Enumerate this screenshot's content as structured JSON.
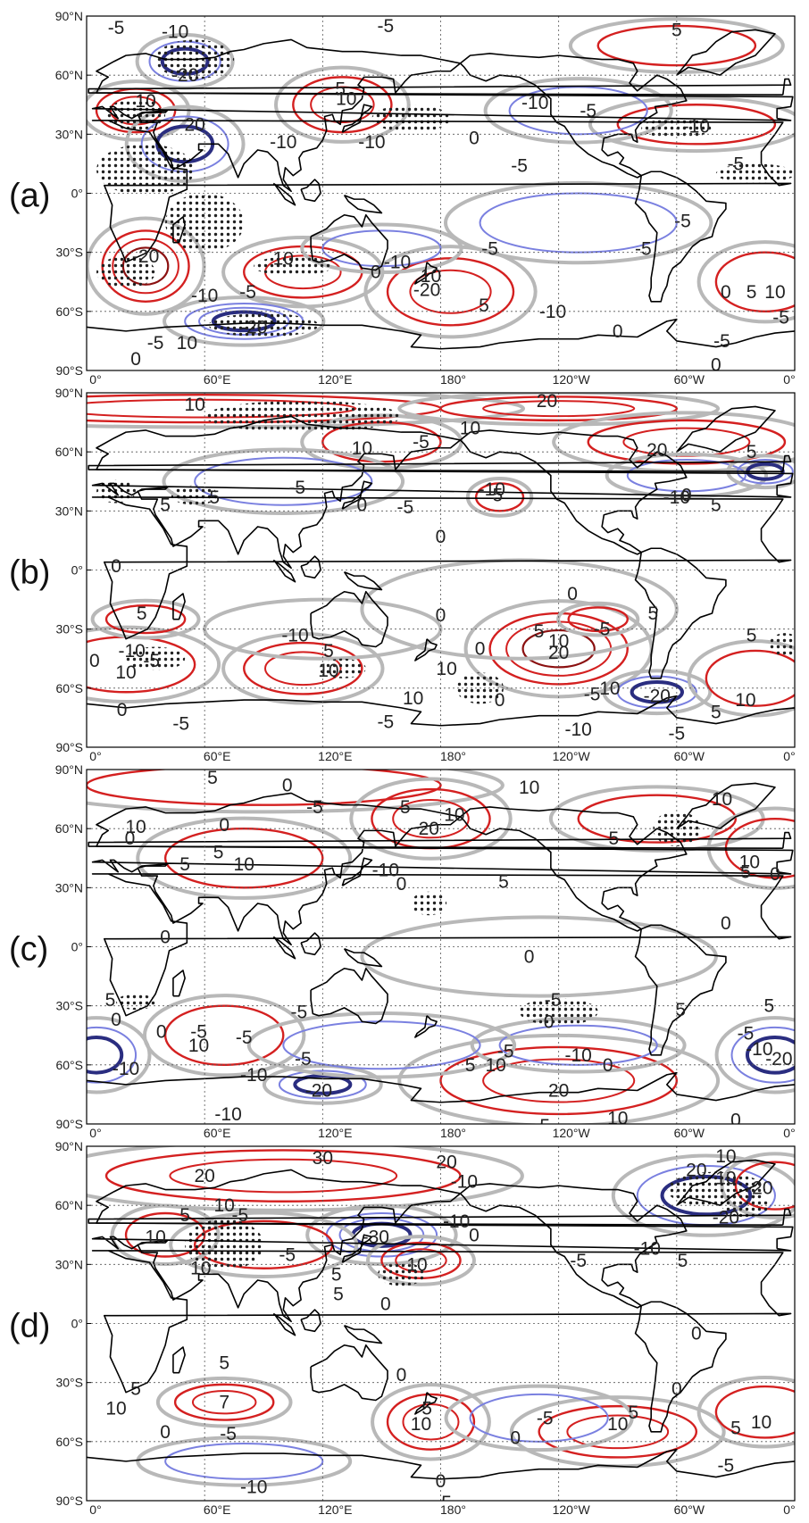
{
  "colors": {
    "positive_strong": "#8b1010",
    "positive": "#d42020",
    "zero": "#b8b8b8",
    "negative": "#7a80e0",
    "negative_strong": "#2a2d80",
    "coast": "#000000",
    "stipple": "#222222"
  },
  "axes": {
    "y_ticks": [
      "90°N",
      "60°N",
      "30°N",
      "0°",
      "30°S",
      "60°S",
      "90°S"
    ],
    "x_ticks": [
      "0°",
      "60°E",
      "120°E",
      "180°",
      "120°W",
      "60°W",
      "0°"
    ]
  },
  "panels": [
    {
      "label": "(a)",
      "contour_labels": [
        {
          "text": "-5",
          "lon": 15,
          "lat": 84
        },
        {
          "text": "-10",
          "lon": 45,
          "lat": 82
        },
        {
          "text": "-5",
          "lon": 152,
          "lat": 85
        },
        {
          "text": "-20",
          "lon": 50,
          "lat": 60
        },
        {
          "text": "10",
          "lon": 30,
          "lat": 47
        },
        {
          "text": "5",
          "lon": 129,
          "lat": 53
        },
        {
          "text": "10",
          "lon": 132,
          "lat": 48
        },
        {
          "text": "20",
          "lon": 55,
          "lat": 35
        },
        {
          "text": "-10",
          "lon": 100,
          "lat": 26
        },
        {
          "text": "-10",
          "lon": 145,
          "lat": 26
        },
        {
          "text": "0",
          "lon": 197,
          "lat": 28
        },
        {
          "text": "-5",
          "lon": 220,
          "lat": 14
        },
        {
          "text": "-10",
          "lon": 228,
          "lat": 46
        },
        {
          "text": "-5",
          "lon": 255,
          "lat": 42
        },
        {
          "text": "-10",
          "lon": 310,
          "lat": 34
        },
        {
          "text": "5",
          "lon": 300,
          "lat": 83
        },
        {
          "text": "-5",
          "lon": 330,
          "lat": 15
        },
        {
          "text": "-5",
          "lon": 303,
          "lat": -14
        },
        {
          "text": "-5",
          "lon": 283,
          "lat": -28
        },
        {
          "text": "-5",
          "lon": 205,
          "lat": -28
        },
        {
          "text": "-20",
          "lon": 30,
          "lat": -32
        },
        {
          "text": "10",
          "lon": 100,
          "lat": -33
        },
        {
          "text": "0",
          "lon": 147,
          "lat": -40
        },
        {
          "text": "-10",
          "lon": 158,
          "lat": -35
        },
        {
          "text": "10",
          "lon": 175,
          "lat": -42
        },
        {
          "text": "-20",
          "lon": 173,
          "lat": -49
        },
        {
          "text": "5",
          "lon": 202,
          "lat": -57
        },
        {
          "text": "-10",
          "lon": 237,
          "lat": -60
        },
        {
          "text": "0",
          "lon": 270,
          "lat": -70
        },
        {
          "text": "-10",
          "lon": 60,
          "lat": -52
        },
        {
          "text": "-5",
          "lon": 82,
          "lat": -50
        },
        {
          "text": "-20",
          "lon": 85,
          "lat": -68
        },
        {
          "text": "-5",
          "lon": 35,
          "lat": -76
        },
        {
          "text": "10",
          "lon": 51,
          "lat": -76
        },
        {
          "text": "0",
          "lon": 25,
          "lat": -84
        },
        {
          "text": "-5",
          "lon": 323,
          "lat": -75
        },
        {
          "text": "0",
          "lon": 320,
          "lat": -87
        },
        {
          "text": "0",
          "lon": 325,
          "lat": -50
        },
        {
          "text": "5",
          "lon": 338,
          "lat": -50
        },
        {
          "text": "10",
          "lon": 350,
          "lat": -50
        },
        {
          "text": "-5",
          "lon": 353,
          "lat": -63
        }
      ]
    },
    {
      "label": "(b)",
      "contour_labels": [
        {
          "text": "10",
          "lon": 55,
          "lat": 84
        },
        {
          "text": "20",
          "lon": 234,
          "lat": 86
        },
        {
          "text": "10",
          "lon": 140,
          "lat": 62
        },
        {
          "text": "10",
          "lon": 195,
          "lat": 72
        },
        {
          "text": "20",
          "lon": 290,
          "lat": 61
        },
        {
          "text": "5",
          "lon": 338,
          "lat": 60
        },
        {
          "text": "-5",
          "lon": 170,
          "lat": 65
        },
        {
          "text": "-5",
          "lon": 107,
          "lat": 42
        },
        {
          "text": "-10",
          "lon": 206,
          "lat": 41
        },
        {
          "text": "-5",
          "lon": 162,
          "lat": 32
        },
        {
          "text": "0",
          "lon": 140,
          "lat": 33
        },
        {
          "text": "5",
          "lon": 209,
          "lat": 38
        },
        {
          "text": "5",
          "lon": 65,
          "lat": 37
        },
        {
          "text": "5",
          "lon": 40,
          "lat": 33
        },
        {
          "text": "0",
          "lon": 180,
          "lat": 17
        },
        {
          "text": "0",
          "lon": 305,
          "lat": 38
        },
        {
          "text": "-10",
          "lon": 300,
          "lat": 37
        },
        {
          "text": "5",
          "lon": 320,
          "lat": 33
        },
        {
          "text": "0",
          "lon": 15,
          "lat": 2
        },
        {
          "text": "0",
          "lon": 247,
          "lat": -12
        },
        {
          "text": "5",
          "lon": 288,
          "lat": -22
        },
        {
          "text": "5",
          "lon": 28,
          "lat": -22
        },
        {
          "text": "0",
          "lon": 180,
          "lat": -23
        },
        {
          "text": "-10",
          "lon": 106,
          "lat": -33
        },
        {
          "text": "5",
          "lon": 123,
          "lat": -41
        },
        {
          "text": "10",
          "lon": 123,
          "lat": -51
        },
        {
          "text": "5",
          "lon": 230,
          "lat": -31
        },
        {
          "text": "10",
          "lon": 240,
          "lat": -36
        },
        {
          "text": "20",
          "lon": 240,
          "lat": -42
        },
        {
          "text": "0",
          "lon": 200,
          "lat": -40
        },
        {
          "text": "-5",
          "lon": 262,
          "lat": -30
        },
        {
          "text": "0",
          "lon": 4,
          "lat": -46
        },
        {
          "text": "-10",
          "lon": 23,
          "lat": -41
        },
        {
          "text": "-5",
          "lon": 33,
          "lat": -46
        },
        {
          "text": "10",
          "lon": 20,
          "lat": -52
        },
        {
          "text": "0",
          "lon": 18,
          "lat": -71
        },
        {
          "text": "-5",
          "lon": 48,
          "lat": -78
        },
        {
          "text": "10",
          "lon": 183,
          "lat": -50
        },
        {
          "text": "10",
          "lon": 166,
          "lat": -65
        },
        {
          "text": "0",
          "lon": 210,
          "lat": -66
        },
        {
          "text": "-5",
          "lon": 257,
          "lat": -63
        },
        {
          "text": "10",
          "lon": 266,
          "lat": -60
        },
        {
          "text": "-20",
          "lon": 290,
          "lat": -64
        },
        {
          "text": "-10",
          "lon": 250,
          "lat": -81
        },
        {
          "text": "-5",
          "lon": 300,
          "lat": -83
        },
        {
          "text": "-5",
          "lon": 152,
          "lat": -77
        },
        {
          "text": "5",
          "lon": 338,
          "lat": -33
        },
        {
          "text": "10",
          "lon": 335,
          "lat": -66
        },
        {
          "text": "5",
          "lon": 320,
          "lat": -72
        }
      ]
    },
    {
      "label": "(c)",
      "contour_labels": [
        {
          "text": "5",
          "lon": 64,
          "lat": 86
        },
        {
          "text": "0",
          "lon": 102,
          "lat": 82
        },
        {
          "text": "-5",
          "lon": 116,
          "lat": 71
        },
        {
          "text": "5",
          "lon": 162,
          "lat": 71
        },
        {
          "text": "10",
          "lon": 187,
          "lat": 67
        },
        {
          "text": "20",
          "lon": 174,
          "lat": 60
        },
        {
          "text": "10",
          "lon": 225,
          "lat": 81
        },
        {
          "text": "10",
          "lon": 323,
          "lat": 75
        },
        {
          "text": "10",
          "lon": 25,
          "lat": 61
        },
        {
          "text": "0",
          "lon": 22,
          "lat": 55
        },
        {
          "text": "0",
          "lon": 70,
          "lat": 62
        },
        {
          "text": "5",
          "lon": 50,
          "lat": 42
        },
        {
          "text": "5",
          "lon": 67,
          "lat": 48
        },
        {
          "text": "10",
          "lon": 80,
          "lat": 42
        },
        {
          "text": "5",
          "lon": 268,
          "lat": 55
        },
        {
          "text": "10",
          "lon": 337,
          "lat": 43
        },
        {
          "text": "5",
          "lon": 335,
          "lat": 38
        },
        {
          "text": "0",
          "lon": 350,
          "lat": 37
        },
        {
          "text": "-10",
          "lon": 152,
          "lat": 39
        },
        {
          "text": "0",
          "lon": 160,
          "lat": 32
        },
        {
          "text": "5",
          "lon": 212,
          "lat": 33
        },
        {
          "text": "0",
          "lon": 40,
          "lat": 5
        },
        {
          "text": "0",
          "lon": 225,
          "lat": -5
        },
        {
          "text": "0",
          "lon": 325,
          "lat": 12
        },
        {
          "text": "5",
          "lon": 12,
          "lat": -27
        },
        {
          "text": "0",
          "lon": 15,
          "lat": -37
        },
        {
          "text": "0",
          "lon": 38,
          "lat": -43
        },
        {
          "text": "-5",
          "lon": 57,
          "lat": -43
        },
        {
          "text": "10",
          "lon": 57,
          "lat": -50
        },
        {
          "text": "-5",
          "lon": 80,
          "lat": -46
        },
        {
          "text": "-5",
          "lon": 110,
          "lat": -57
        },
        {
          "text": "-10",
          "lon": 85,
          "lat": -65
        },
        {
          "text": "-20",
          "lon": 118,
          "lat": -73
        },
        {
          "text": "-10",
          "lon": 72,
          "lat": -85
        },
        {
          "text": "-5",
          "lon": 108,
          "lat": -33
        },
        {
          "text": "-10",
          "lon": 20,
          "lat": -62
        },
        {
          "text": "5",
          "lon": 195,
          "lat": -60
        },
        {
          "text": "10",
          "lon": 208,
          "lat": -60
        },
        {
          "text": "-5",
          "lon": 213,
          "lat": -53
        },
        {
          "text": "0",
          "lon": 235,
          "lat": -38
        },
        {
          "text": "-10",
          "lon": 250,
          "lat": -55
        },
        {
          "text": "0",
          "lon": 265,
          "lat": -60
        },
        {
          "text": "-5",
          "lon": 237,
          "lat": -27
        },
        {
          "text": "20",
          "lon": 240,
          "lat": -73
        },
        {
          "text": "10",
          "lon": 270,
          "lat": -87
        },
        {
          "text": "5",
          "lon": 233,
          "lat": -91
        },
        {
          "text": "5",
          "lon": 302,
          "lat": -32
        },
        {
          "text": "0",
          "lon": 330,
          "lat": -88
        },
        {
          "text": "-5",
          "lon": 335,
          "lat": -44
        },
        {
          "text": "-10",
          "lon": 342,
          "lat": -52
        },
        {
          "text": "-20",
          "lon": 352,
          "lat": -57
        },
        {
          "text": "5",
          "lon": 347,
          "lat": -30
        }
      ]
    },
    {
      "label": "(d)",
      "contour_labels": [
        {
          "text": "30",
          "lon": 120,
          "lat": 84
        },
        {
          "text": "20",
          "lon": 60,
          "lat": 75
        },
        {
          "text": "20",
          "lon": 183,
          "lat": 82
        },
        {
          "text": "-10",
          "lon": 192,
          "lat": 72
        },
        {
          "text": "10",
          "lon": 325,
          "lat": 85
        },
        {
          "text": "20",
          "lon": 310,
          "lat": 78
        },
        {
          "text": "10",
          "lon": 325,
          "lat": 74
        },
        {
          "text": "-20",
          "lon": 342,
          "lat": 69
        },
        {
          "text": "-20",
          "lon": 325,
          "lat": 54
        },
        {
          "text": "-10",
          "lon": 285,
          "lat": 38
        },
        {
          "text": "5",
          "lon": 303,
          "lat": 32
        },
        {
          "text": "-5",
          "lon": 250,
          "lat": 32
        },
        {
          "text": "10",
          "lon": 70,
          "lat": 60
        },
        {
          "text": "-5",
          "lon": 78,
          "lat": 55
        },
        {
          "text": "5",
          "lon": 50,
          "lat": 55
        },
        {
          "text": "10",
          "lon": 35,
          "lat": 44
        },
        {
          "text": "10",
          "lon": 58,
          "lat": 28
        },
        {
          "text": "-5",
          "lon": 102,
          "lat": 35
        },
        {
          "text": "-30",
          "lon": 147,
          "lat": 44
        },
        {
          "text": "-10",
          "lon": 188,
          "lat": 52
        },
        {
          "text": "10",
          "lon": 168,
          "lat": 30
        },
        {
          "text": "5",
          "lon": 127,
          "lat": 25
        },
        {
          "text": "5",
          "lon": 128,
          "lat": 15
        },
        {
          "text": "0",
          "lon": 152,
          "lat": 10
        },
        {
          "text": "0",
          "lon": 197,
          "lat": 45
        },
        {
          "text": "0",
          "lon": 310,
          "lat": -5
        },
        {
          "text": "0",
          "lon": 160,
          "lat": -26
        },
        {
          "text": "5",
          "lon": 70,
          "lat": -20
        },
        {
          "text": "5",
          "lon": 25,
          "lat": -33
        },
        {
          "text": "10",
          "lon": 15,
          "lat": -43
        },
        {
          "text": "7",
          "lon": 70,
          "lat": -40
        },
        {
          "text": "0",
          "lon": 40,
          "lat": -55
        },
        {
          "text": "-5",
          "lon": 72,
          "lat": -56
        },
        {
          "text": "-10",
          "lon": 85,
          "lat": -83
        },
        {
          "text": "5",
          "lon": 173,
          "lat": -43
        },
        {
          "text": "10",
          "lon": 170,
          "lat": -51
        },
        {
          "text": "0",
          "lon": 180,
          "lat": -80
        },
        {
          "text": "5",
          "lon": 183,
          "lat": -91
        },
        {
          "text": "-5",
          "lon": 233,
          "lat": -48
        },
        {
          "text": "0",
          "lon": 218,
          "lat": -58
        },
        {
          "text": "10",
          "lon": 270,
          "lat": -51
        },
        {
          "text": "5",
          "lon": 278,
          "lat": -45
        },
        {
          "text": "0",
          "lon": 300,
          "lat": -33
        },
        {
          "text": "5",
          "lon": 330,
          "lat": -53
        },
        {
          "text": "10",
          "lon": 343,
          "lat": -50
        },
        {
          "text": "-5",
          "lon": 325,
          "lat": -72
        }
      ]
    }
  ]
}
